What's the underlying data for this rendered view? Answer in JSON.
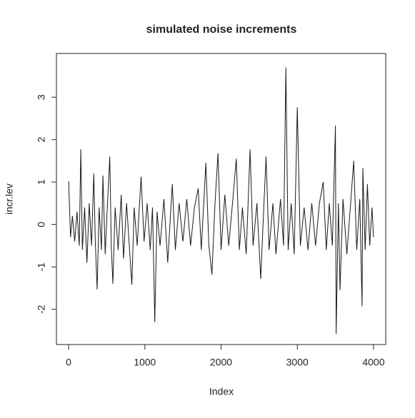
{
  "chart_data": {
    "type": "line",
    "title": "simulated noise increments",
    "x_label": "Index",
    "y_label": "incr.lev",
    "x": [
      0,
      25,
      50,
      80,
      110,
      140,
      160,
      180,
      210,
      240,
      270,
      300,
      330,
      350,
      374,
      400,
      430,
      450,
      480,
      510,
      540,
      560,
      580,
      610,
      650,
      690,
      720,
      760,
      800,
      830,
      860,
      900,
      950,
      990,
      1030,
      1070,
      1100,
      1130,
      1160,
      1200,
      1250,
      1300,
      1360,
      1400,
      1450,
      1500,
      1550,
      1600,
      1650,
      1700,
      1740,
      1800,
      1840,
      1880,
      1920,
      1960,
      2000,
      2050,
      2100,
      2150,
      2200,
      2240,
      2280,
      2330,
      2380,
      2420,
      2470,
      2520,
      2560,
      2590,
      2630,
      2680,
      2720,
      2780,
      2820,
      2850,
      2880,
      2920,
      2960,
      3000,
      3040,
      3090,
      3140,
      3190,
      3240,
      3290,
      3340,
      3380,
      3420,
      3460,
      3500,
      3510,
      3540,
      3560,
      3600,
      3650,
      3700,
      3740,
      3780,
      3820,
      3850,
      3860,
      3890,
      3920,
      3950,
      3980,
      4000
    ],
    "values": [
      1.02,
      -0.3,
      0.2,
      -0.4,
      0.3,
      -0.5,
      1.77,
      -0.6,
      0.4,
      -0.9,
      0.5,
      -0.5,
      1.2,
      -0.4,
      -1.53,
      0.4,
      -0.6,
      1.15,
      -0.7,
      0.5,
      1.6,
      -0.5,
      -1.4,
      0.4,
      -0.6,
      0.7,
      -0.8,
      0.5,
      -0.6,
      -1.42,
      0.4,
      -0.5,
      1.13,
      -0.4,
      0.5,
      -0.6,
      0.4,
      -2.3,
      0.3,
      -0.5,
      0.6,
      -0.9,
      0.95,
      -0.6,
      0.5,
      -0.4,
      0.6,
      -0.5,
      0.4,
      0.85,
      -0.6,
      1.45,
      -0.5,
      -1.18,
      0.5,
      1.68,
      -0.6,
      0.7,
      -0.5,
      0.5,
      1.55,
      -0.6,
      0.4,
      -0.7,
      1.77,
      -0.5,
      0.5,
      -1.28,
      0.4,
      1.6,
      -0.6,
      0.5,
      -0.7,
      0.6,
      -0.5,
      3.7,
      -0.6,
      0.5,
      -0.7,
      2.76,
      -0.5,
      0.4,
      -0.6,
      0.5,
      -0.5,
      0.5,
      1.0,
      -0.6,
      0.5,
      -0.5,
      2.33,
      -2.58,
      0.5,
      -1.55,
      0.6,
      -0.7,
      0.5,
      1.5,
      -0.6,
      0.6,
      -1.93,
      1.33,
      -0.6,
      0.95,
      -0.5,
      0.4,
      -0.3
    ],
    "color": "#1a1a1a",
    "xlim": [
      -160,
      4160
    ],
    "xticks": [
      0,
      1000,
      2000,
      3000,
      4000
    ],
    "ylim": [
      -2.83,
      4.03
    ],
    "yticks": [
      -2,
      -1,
      0,
      1,
      2,
      3
    ]
  }
}
